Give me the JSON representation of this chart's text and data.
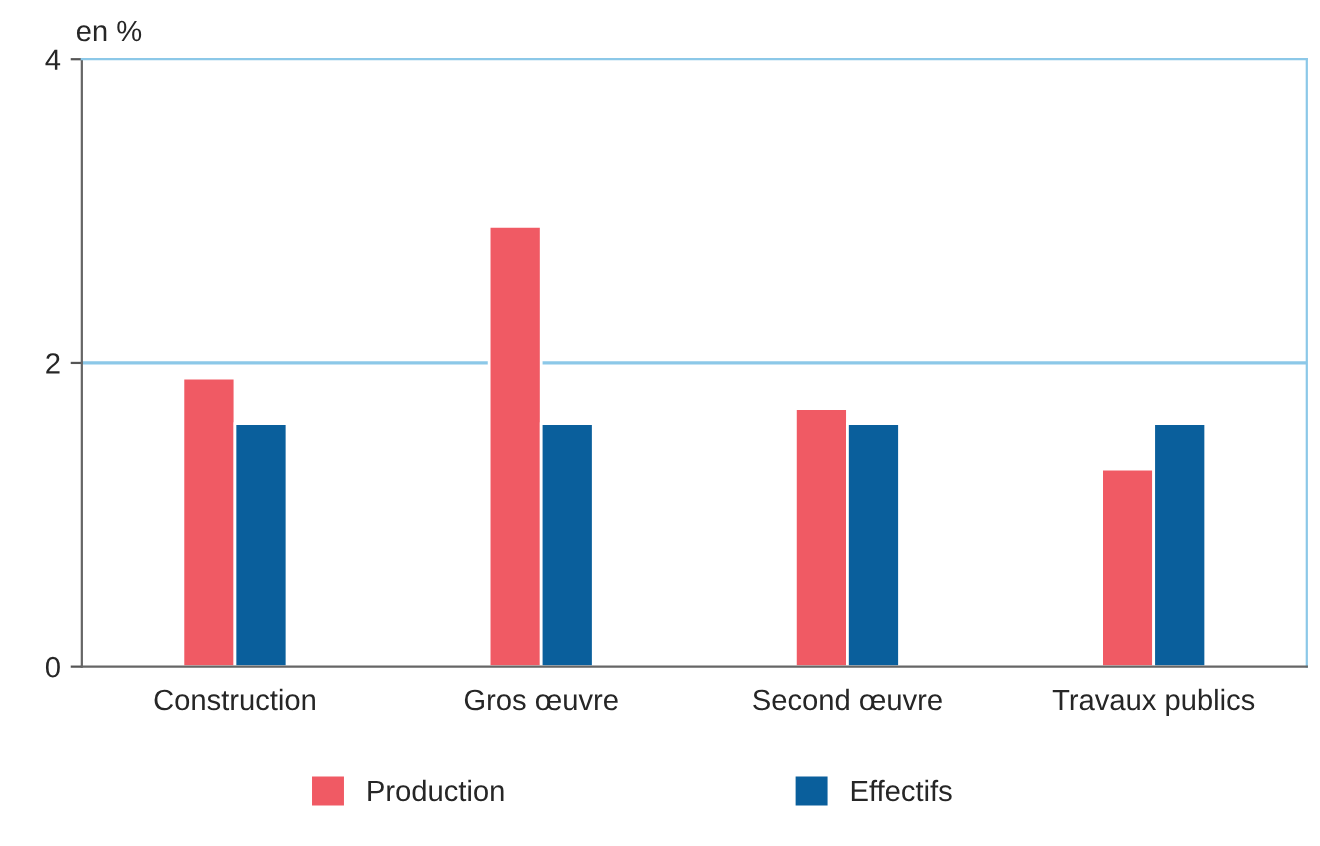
{
  "chart_data": {
    "type": "bar",
    "ylabel": "en %",
    "categories": [
      "Construction",
      "Gros œuvre",
      "Second œuvre",
      "Travaux publics"
    ],
    "series": [
      {
        "name": "Production",
        "color": "#f05a64",
        "values": [
          1.9,
          2.9,
          1.7,
          1.3
        ]
      },
      {
        "name": "Effectifs",
        "color": "#0a5f9c",
        "values": [
          1.6,
          1.6,
          1.6,
          1.6
        ]
      }
    ],
    "ylim": [
      0,
      4
    ],
    "yticks": [
      0,
      2,
      4
    ],
    "ref_lines": [
      {
        "axis": "y",
        "value": 2,
        "color": "#8cc8e8"
      }
    ],
    "legend": "bottom"
  }
}
